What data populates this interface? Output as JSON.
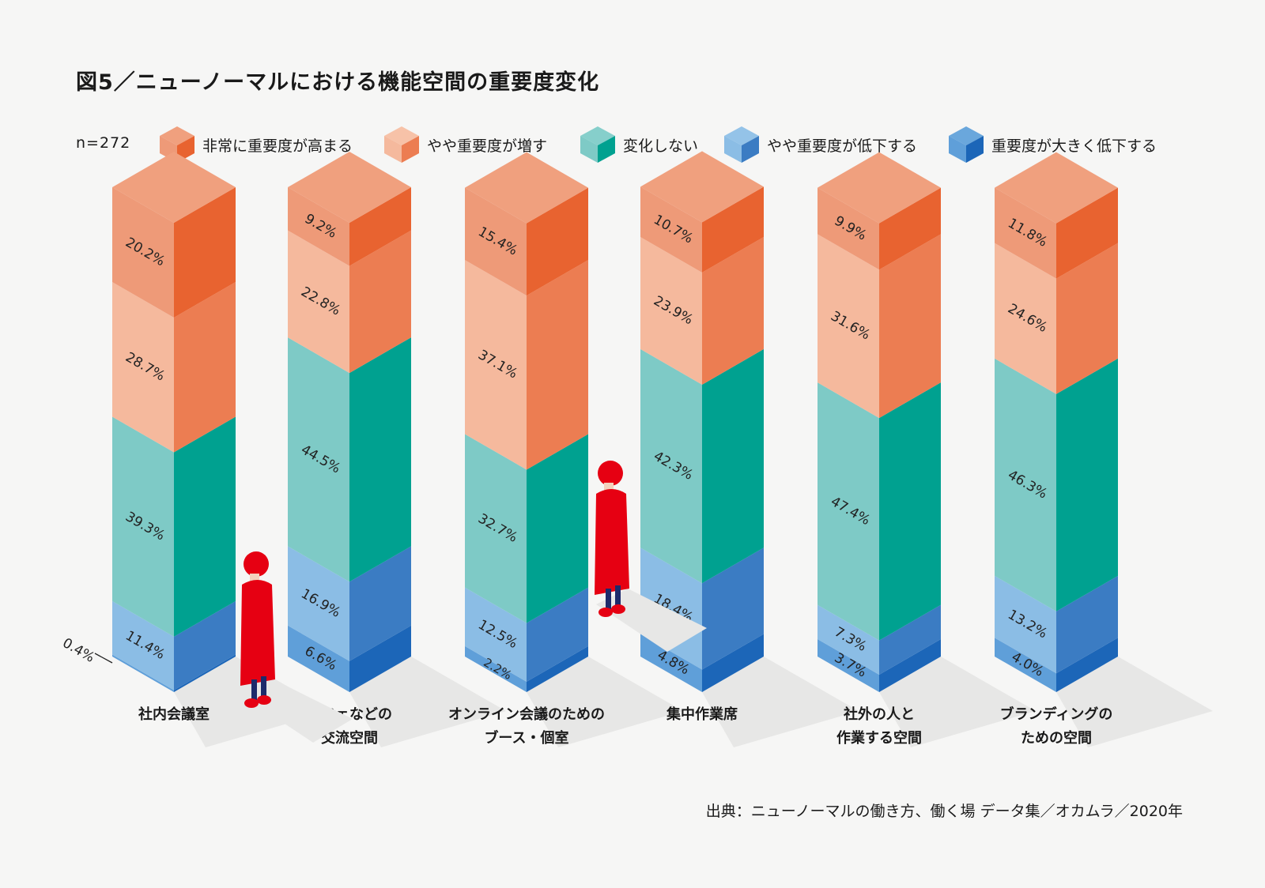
{
  "title": "図5／ニューノーマルにおける機能空間の重要度変化",
  "sample": "n=272",
  "source": "出典：ニューノーマルの働き方、働く場 データ集／オカムラ／2020年",
  "colors": {
    "very_increase": {
      "front": "#ee9a78",
      "side": "#e86330",
      "top": "#f0a07e"
    },
    "slightly_increase": {
      "front": "#f5b99d",
      "side": "#ec7d52",
      "top": "#f7c2a8"
    },
    "no_change": {
      "front": "#7ecac6",
      "side": "#00a190",
      "top": "#86cfcb"
    },
    "slightly_decrease": {
      "front": "#8bbde5",
      "side": "#3b7cc3",
      "top": "#94c3e8"
    },
    "greatly_decrease": {
      "front": "#5f9fd9",
      "side": "#1c66b8",
      "top": "#6aa7dc"
    },
    "person": "#e60012"
  },
  "chart_data": {
    "type": "stacked-bar",
    "title": "図5／ニューノーマルにおける機能空間の重要度変化",
    "stack_order": [
      "greatly_decrease",
      "slightly_decrease",
      "no_change",
      "slightly_increase",
      "very_increase"
    ],
    "legend": [
      {
        "key": "very_increase",
        "label": "非常に重要度が高まる"
      },
      {
        "key": "slightly_increase",
        "label": "やや重要度が増す"
      },
      {
        "key": "no_change",
        "label": "変化しない"
      },
      {
        "key": "slightly_decrease",
        "label": "やや重要度が低下する"
      },
      {
        "key": "greatly_decrease",
        "label": "重要度が大きく低下する"
      }
    ],
    "categories": [
      {
        "label1": "社内会議室",
        "label2": "",
        "values": {
          "very_increase": 20.2,
          "slightly_increase": 28.7,
          "no_change": 39.3,
          "slightly_decrease": 11.4,
          "greatly_decrease": 0.4
        },
        "labels": {
          "very_increase": "20.2%",
          "slightly_increase": "28.7%",
          "no_change": "39.3%",
          "slightly_decrease": "11.4%",
          "greatly_decrease": "0.4%"
        }
      },
      {
        "label1": "カフェなどの",
        "label2": "交流空間",
        "values": {
          "very_increase": 9.2,
          "slightly_increase": 22.8,
          "no_change": 44.5,
          "slightly_decrease": 16.9,
          "greatly_decrease": 6.6
        },
        "labels": {
          "very_increase": "9.2%",
          "slightly_increase": "22.8%",
          "no_change": "44.5%",
          "slightly_decrease": "16.9%",
          "greatly_decrease": "6.6%"
        }
      },
      {
        "label1": "オンライン会議のための",
        "label2": "ブース・個室",
        "values": {
          "very_increase": 15.4,
          "slightly_increase": 37.1,
          "no_change": 32.7,
          "slightly_decrease": 12.5,
          "greatly_decrease": 2.2
        },
        "labels": {
          "very_increase": "15.4%",
          "slightly_increase": "37.1%",
          "no_change": "32.7%",
          "slightly_decrease": "12.5%",
          "greatly_decrease": "2.2%"
        }
      },
      {
        "label1": "集中作業席",
        "label2": "",
        "values": {
          "very_increase": 10.7,
          "slightly_increase": 23.9,
          "no_change": 42.3,
          "slightly_decrease": 18.4,
          "greatly_decrease": 4.8
        },
        "labels": {
          "very_increase": "10.7%",
          "slightly_increase": "23.9%",
          "no_change": "42.3%",
          "slightly_decrease": "18.4%",
          "greatly_decrease": "4.8%"
        }
      },
      {
        "label1": "社外の人と",
        "label2": "作業する空間",
        "values": {
          "very_increase": 9.9,
          "slightly_increase": 31.6,
          "no_change": 47.4,
          "slightly_decrease": 7.3,
          "greatly_decrease": 3.7
        },
        "labels": {
          "very_increase": "9.9%",
          "slightly_increase": "31.6%",
          "no_change": "47.4%",
          "slightly_decrease": "7.3%",
          "greatly_decrease": "3.7%"
        }
      },
      {
        "label1": "ブランディングの",
        "label2": "ための空間",
        "values": {
          "very_increase": 11.8,
          "slightly_increase": 24.6,
          "no_change": 46.3,
          "slightly_decrease": 13.2,
          "greatly_decrease": 4.0
        },
        "labels": {
          "very_increase": "11.8%",
          "slightly_increase": "24.6%",
          "no_change": "46.3%",
          "slightly_decrease": "13.2%",
          "greatly_decrease": "4.0%"
        }
      }
    ]
  }
}
